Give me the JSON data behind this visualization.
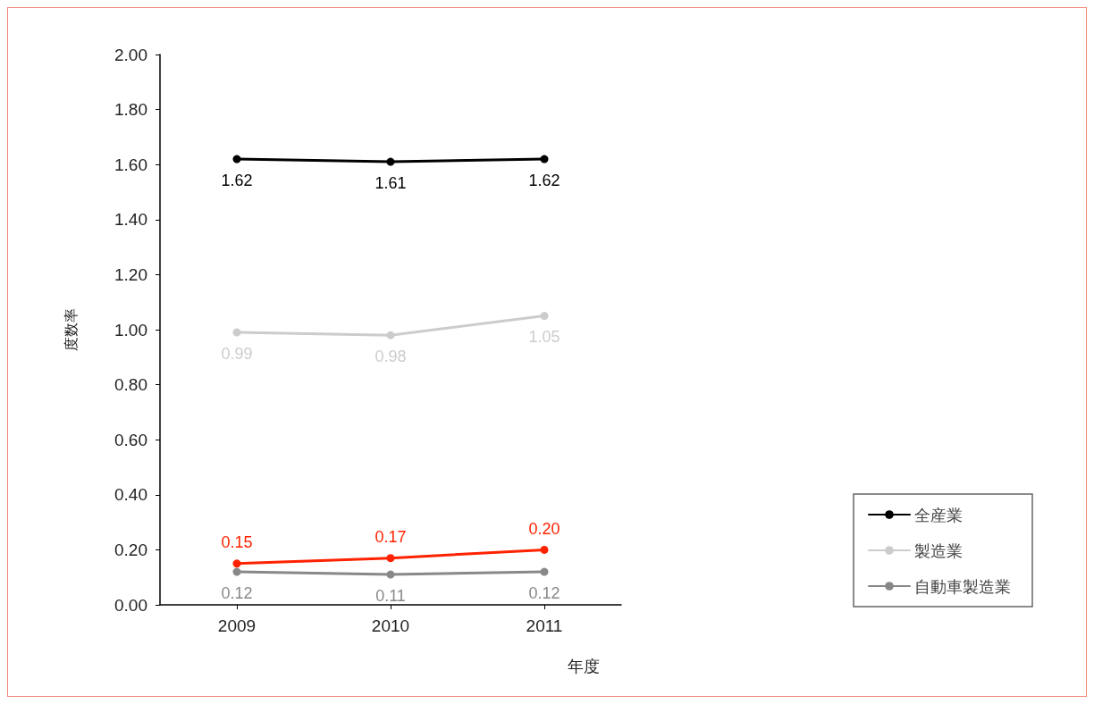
{
  "chart_data": {
    "type": "line",
    "ylabel": "度数率",
    "xlabel": "年度",
    "categories": [
      "2009",
      "2010",
      "2011"
    ],
    "series": [
      {
        "name": "全産業",
        "color": "#000000",
        "values": [
          1.62,
          1.61,
          1.62
        ]
      },
      {
        "name": "製造業",
        "color": "#cccccc",
        "values": [
          0.99,
          0.98,
          1.05
        ]
      },
      {
        "name": "自動車製造業",
        "color": "#888888",
        "values": [
          0.12,
          0.11,
          0.12
        ]
      },
      {
        "color": "#ff2200",
        "values": [
          0.15,
          0.17,
          0.2
        ],
        "value_labels": [
          "0.15",
          "0.17",
          "0.20"
        ]
      }
    ],
    "ylim": [
      0,
      2
    ],
    "yticks": [
      {
        "value": 0,
        "label": "0.00"
      },
      {
        "value": 0.2,
        "label": "0.20"
      },
      {
        "value": 0.4,
        "label": "0.40"
      },
      {
        "value": 0.6,
        "label": "0.60"
      },
      {
        "value": 0.8,
        "label": "0.80"
      },
      {
        "value": 1,
        "label": "1.00"
      },
      {
        "value": 1.2,
        "label": "1.20"
      },
      {
        "value": 1.4,
        "label": "1.40"
      },
      {
        "value": 1.6,
        "label": "1.60"
      },
      {
        "value": 1.8,
        "label": "1.80"
      },
      {
        "value": 2,
        "label": "2.00"
      }
    ],
    "data_labels": true,
    "marker": "circle",
    "line_style": "solid",
    "grid": false,
    "legend": "bottom right"
  }
}
